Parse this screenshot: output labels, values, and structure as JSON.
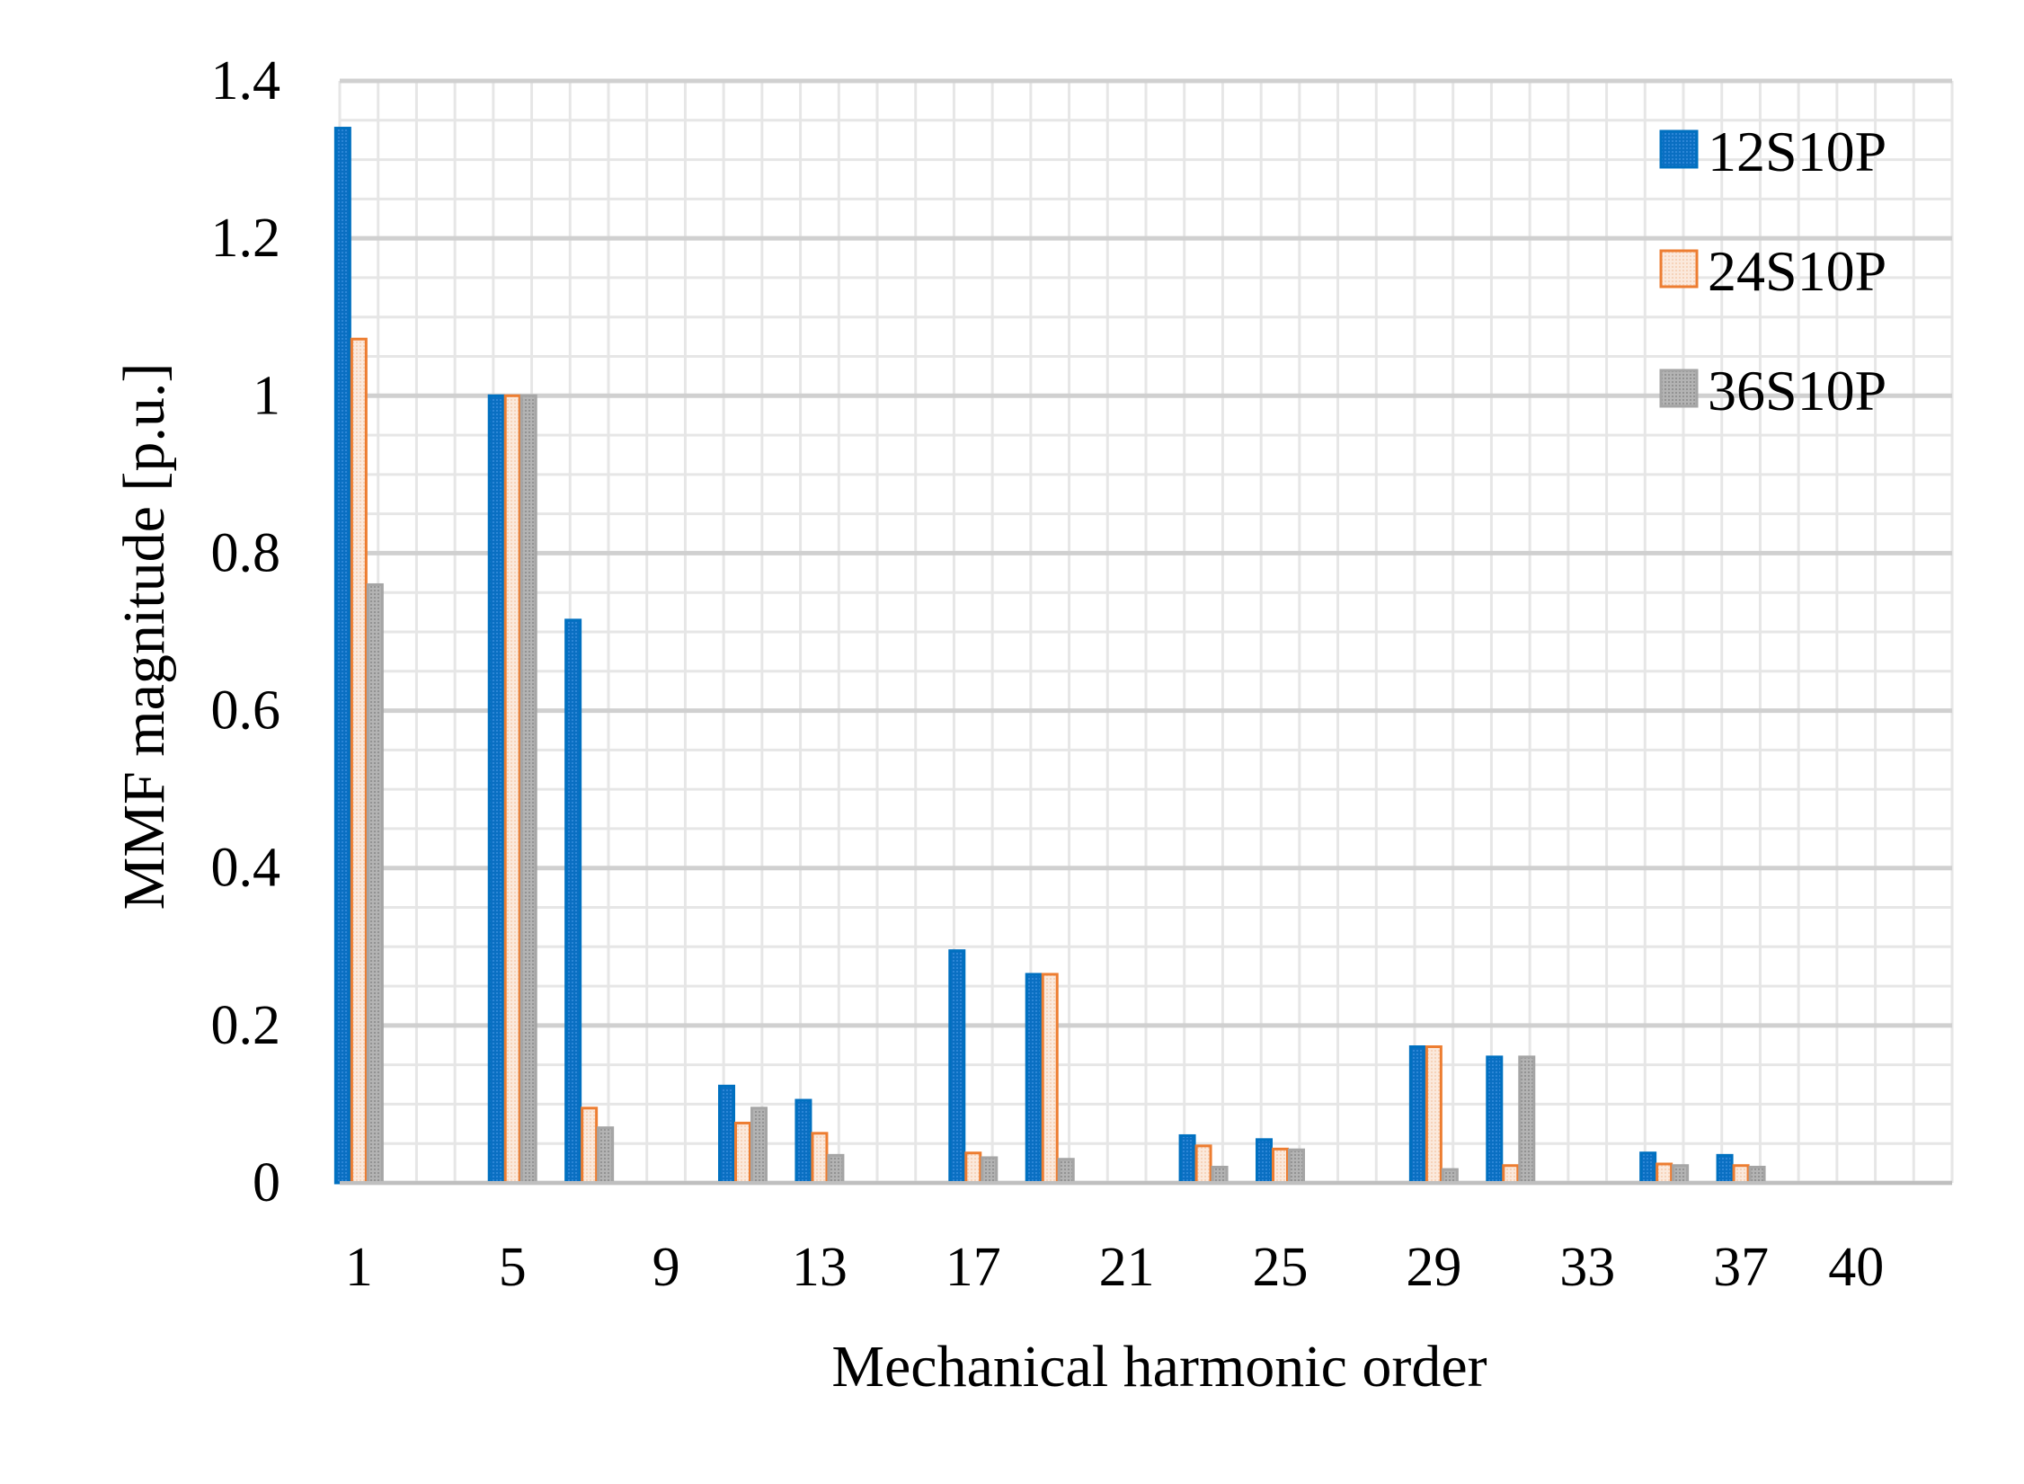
{
  "chart_data": {
    "type": "bar",
    "xlabel": "Mechanical harmonic order",
    "ylabel": "MMF magnitude [p.u.]",
    "ylim": [
      0,
      1.4
    ],
    "yticks": [
      "0",
      "0.2",
      "0.4",
      "0.6",
      "0.8",
      "1",
      "1.2",
      "1.4"
    ],
    "xtick_labels": [
      "1",
      "5",
      "9",
      "13",
      "17",
      "21",
      "25",
      "29",
      "33",
      "37",
      "40"
    ],
    "grid": true,
    "legend_position": "top-right",
    "categories": [
      "1",
      "2",
      "3",
      "4",
      "5",
      "6",
      "7",
      "8",
      "9",
      "10",
      "11",
      "12",
      "13",
      "14",
      "15",
      "16",
      "17",
      "18",
      "19",
      "20",
      "21",
      "22",
      "23",
      "24",
      "25",
      "26",
      "27",
      "28",
      "29",
      "30",
      "31",
      "32",
      "33",
      "34",
      "35",
      "36",
      "37",
      "38",
      "39",
      "40",
      "41",
      "42"
    ],
    "series": [
      {
        "name": "12S10P",
        "color": "#0070c0",
        "values": [
          1.34,
          0,
          0,
          0,
          1.0,
          0,
          0.715,
          0,
          0,
          0,
          0.123,
          0,
          0.105,
          0,
          0,
          0,
          0.295,
          0,
          0.265,
          0,
          0,
          0,
          0.06,
          0,
          0.055,
          0,
          0,
          0,
          0.173,
          0,
          0.16,
          0,
          0,
          0,
          0.038,
          0,
          0.035,
          0,
          0,
          0,
          0,
          0
        ]
      },
      {
        "name": "24S10P",
        "color": "#ed7d31",
        "values": [
          1.072,
          0,
          0,
          0,
          1.0,
          0,
          0.095,
          0,
          0,
          0,
          0.076,
          0,
          0.063,
          0,
          0,
          0,
          0.038,
          0,
          0.265,
          0,
          0,
          0,
          0.047,
          0,
          0.043,
          0,
          0,
          0,
          0.173,
          0,
          0.022,
          0,
          0,
          0,
          0.024,
          0,
          0.022,
          0,
          0,
          0,
          0,
          0
        ]
      },
      {
        "name": "36S10P",
        "color": "#a5a5a5",
        "values": [
          0.76,
          0,
          0,
          0,
          1.0,
          0,
          0.07,
          0,
          0,
          0,
          0.095,
          0,
          0.035,
          0,
          0,
          0,
          0.032,
          0,
          0.03,
          0,
          0,
          0,
          0.02,
          0,
          0.042,
          0,
          0,
          0,
          0.017,
          0,
          0.16,
          0,
          0,
          0,
          0.022,
          0,
          0.02,
          0,
          0,
          0,
          0,
          0
        ]
      }
    ]
  }
}
